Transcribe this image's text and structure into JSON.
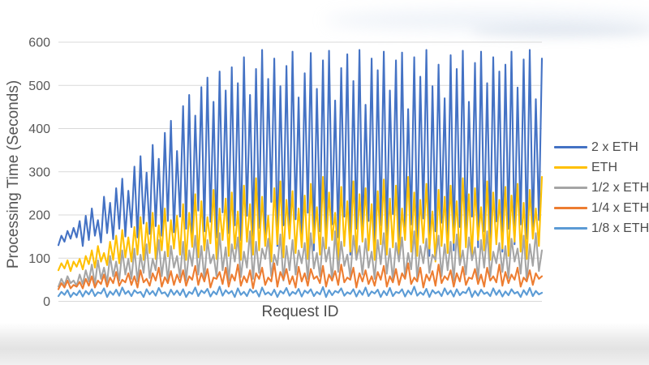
{
  "chart_style": {
    "grid_color": "#d9d9d9",
    "axis_line_color": "#d9d9d9",
    "tick_color": "#595959",
    "title_color": "#4d4d4d",
    "background": "#ffffff",
    "line_width": 2.1
  },
  "chart_data": {
    "type": "line",
    "title": "",
    "xlabel": "Request ID",
    "ylabel": "Processing Time (Seconds)",
    "ylim": [
      0,
      600
    ],
    "yticks": [
      0,
      100,
      200,
      300,
      400,
      500,
      600
    ],
    "xticks_visible": false,
    "grid": "horizontal",
    "legend_position": "right",
    "x": "request index 1..160 (sequential request IDs, unlabeled on axis)",
    "series": [
      {
        "name": "2 x ETH",
        "color": "#4472C4",
        "values": [
          130,
          152,
          138,
          163,
          145,
          170,
          148,
          186,
          128,
          198,
          142,
          215,
          152,
          188,
          136,
          242,
          158,
          228,
          144,
          262,
          168,
          284,
          150,
          256,
          172,
          312,
          148,
          336,
          180,
          298,
          156,
          362,
          174,
          330,
          152,
          390,
          186,
          418,
          160,
          348,
          196,
          452,
          168,
          478,
          150,
          430,
          210,
          496,
          162,
          518,
          184,
          462,
          148,
          532,
          206,
          488,
          158,
          542,
          176,
          505,
          142,
          565,
          198,
          478,
          152,
          538,
          170,
          582,
          148,
          515,
          230,
          562,
          128,
          498,
          176,
          545,
          156,
          578,
          190,
          472,
          138,
          528,
          205,
          575,
          118,
          492,
          162,
          558,
          132,
          580,
          178,
          465,
          148,
          540,
          196,
          572,
          108,
          510,
          168,
          582,
          142,
          455,
          186,
          562,
          122,
          535,
          176,
          578,
          148,
          488,
          202,
          558,
          112,
          576,
          158,
          445,
          178,
          565,
          135,
          520,
          192,
          582,
          105,
          498,
          162,
          548,
          182,
          470,
          146,
          570,
          118,
          538,
          172,
          580,
          138,
          462,
          196,
          552,
          125,
          578,
          162,
          505,
          142,
          565,
          185,
          532,
          115,
          548,
          168,
          578,
          132,
          495,
          178,
          560,
          145,
          582,
          158,
          468,
          188,
          562
        ]
      },
      {
        "name": "ETH",
        "color": "#FFC000",
        "values": [
          72,
          88,
          76,
          95,
          70,
          92,
          80,
          98,
          74,
          105,
          86,
          118,
          78,
          128,
          92,
          112,
          84,
          138,
          96,
          152,
          88,
          165,
          102,
          148,
          92,
          172,
          108,
          195,
          96,
          182,
          112,
          205,
          98,
          176,
          118,
          215,
          104,
          188,
          122,
          198,
          108,
          225,
          96,
          205,
          126,
          248,
          102,
          232,
          118,
          195,
          134,
          258,
          98,
          215,
          142,
          238,
          105,
          252,
          122,
          208,
          96,
          268,
          138,
          225,
          108,
          285,
          118,
          242,
          128,
          198,
          92,
          262,
          132,
          278,
          102,
          235,
          145,
          255,
          112,
          215,
          125,
          245,
          98,
          272,
          135,
          218,
          108,
          288,
          122,
          252,
          142,
          205,
          96,
          265,
          128,
          232,
          115,
          278,
          105,
          248,
          138,
          262,
          118,
          225,
          96,
          255,
          132,
          282,
          108,
          238,
          125,
          268,
          98,
          215,
          142,
          288,
          115,
          252,
          105,
          235,
          135,
          272,
          122,
          208,
          92,
          258,
          128,
          242,
          112,
          268,
          135,
          232,
          98,
          285,
          125,
          248,
          108,
          262,
          142,
          218,
          118,
          278,
          96,
          252,
          132,
          235,
          122,
          265,
          105,
          245,
          138,
          272,
          115,
          228,
          98,
          258,
          145,
          215,
          128,
          288
        ]
      },
      {
        "name": "1/2 x ETH",
        "color": "#A5A5A5",
        "values": [
          34,
          52,
          38,
          58,
          42,
          48,
          36,
          62,
          40,
          72,
          46,
          85,
          38,
          95,
          52,
          78,
          44,
          105,
          58,
          92,
          48,
          118,
          62,
          98,
          52,
          122,
          46,
          108,
          66,
          132,
          54,
          98,
          72,
          142,
          58,
          115,
          48,
          128,
          78,
          105,
          56,
          138,
          48,
          118,
          82,
          152,
          62,
          128,
          52,
          142,
          88,
          108,
          58,
          158,
          72,
          125,
          48,
          132,
          92,
          148,
          56,
          115,
          78,
          162,
          52,
          138,
          66,
          122,
          98,
          145,
          58,
          108,
          84,
          155,
          48,
          128,
          72,
          142,
          62,
          118,
          88,
          135,
          52,
          158,
          76,
          112,
          58,
          148,
          92,
          125,
          48,
          162,
          68,
          138,
          82,
          108,
          56,
          152,
          96,
          128,
          62,
          145,
          78,
          115,
          52,
          142,
          86,
          158,
          64,
          122,
          48,
          135,
          92,
          148,
          58,
          112,
          74,
          162,
          52,
          128,
          88,
          145,
          66,
          108,
          96,
          152,
          58,
          132,
          72,
          138,
          48,
          155,
          84,
          118,
          62,
          148,
          95,
          125,
          52,
          142,
          78,
          162,
          58,
          115,
          88,
          135,
          68,
          128,
          54,
          145,
          92,
          122,
          64,
          152,
          48,
          132,
          82,
          158,
          70,
          118
        ]
      },
      {
        "name": "1/4 x ETH",
        "color": "#ED7D31",
        "values": [
          28,
          42,
          32,
          48,
          30,
          38,
          34,
          45,
          30,
          52,
          36,
          58,
          32,
          48,
          40,
          62,
          34,
          55,
          42,
          68,
          36,
          50,
          44,
          65,
          38,
          58,
          32,
          72,
          44,
          52,
          36,
          65,
          48,
          78,
          34,
          56,
          42,
          70,
          38,
          62,
          44,
          72,
          36,
          58,
          50,
          82,
          38,
          65,
          46,
          75,
          32,
          55,
          52,
          68,
          40,
          78,
          34,
          62,
          48,
          85,
          36,
          58,
          44,
          72,
          30,
          65,
          52,
          78,
          38,
          55,
          46,
          88,
          34,
          68,
          50,
          75,
          40,
          58,
          32,
          80,
          46,
          65,
          36,
          75,
          52,
          58,
          42,
          82,
          34,
          62,
          48,
          70,
          38,
          85,
          44,
          55,
          50,
          78,
          32,
          65,
          46,
          72,
          40,
          58,
          36,
          68,
          50,
          82,
          34,
          58,
          44,
          75,
          38,
          65,
          52,
          88,
          40,
          55,
          46,
          78,
          32,
          62,
          48,
          70,
          36,
          85,
          42,
          58,
          50,
          72,
          34,
          65,
          46,
          80,
          38,
          55,
          52,
          75,
          40,
          62,
          34,
          78,
          48,
          58,
          44,
          85,
          36,
          68,
          42,
          62,
          50,
          78,
          34,
          55,
          46,
          72,
          38,
          65,
          52,
          58
        ]
      },
      {
        "name": "1/8 x ETH",
        "color": "#5B9BD5",
        "values": [
          12,
          22,
          15,
          26,
          10,
          20,
          14,
          25,
          11,
          24,
          16,
          28,
          12,
          21,
          18,
          30,
          10,
          23,
          15,
          27,
          13,
          32,
          17,
          24,
          12,
          26,
          19,
          22,
          10,
          28,
          16,
          24,
          13,
          31,
          18,
          21,
          11,
          27,
          15,
          25,
          14,
          28,
          10,
          22,
          17,
          32,
          12,
          25,
          19,
          29,
          11,
          23,
          16,
          34,
          13,
          26,
          18,
          24,
          10,
          30,
          15,
          22,
          12,
          28,
          20,
          25,
          11,
          32,
          16,
          21,
          14,
          27,
          10,
          24,
          18,
          31,
          13,
          22,
          17,
          29,
          11,
          25,
          19,
          28,
          12,
          22,
          16,
          33,
          10,
          26,
          14,
          24,
          20,
          30,
          13,
          21,
          17,
          28,
          11,
          25,
          15,
          32,
          12,
          23,
          18,
          27,
          10,
          24,
          14,
          31,
          12,
          22,
          19,
          28,
          11,
          25,
          16,
          34,
          13,
          21,
          15,
          29,
          10,
          26,
          18,
          23,
          12,
          30,
          16,
          25,
          11,
          28,
          14,
          22,
          19,
          32,
          10,
          24,
          13,
          27,
          17,
          21,
          12,
          30,
          15,
          26,
          11,
          23,
          14,
          28,
          18,
          22,
          10,
          26,
          15,
          31,
          12,
          24,
          16,
          20
        ]
      }
    ]
  }
}
